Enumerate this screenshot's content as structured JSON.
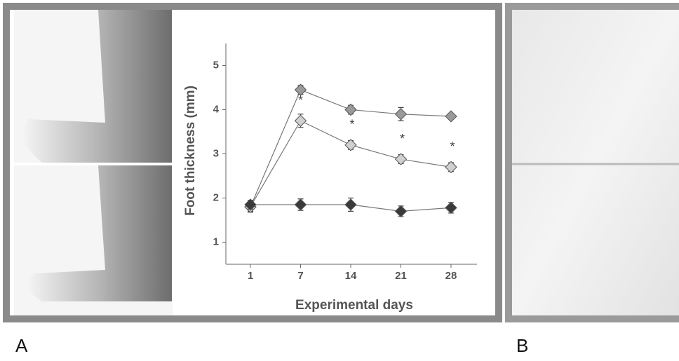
{
  "panel_labels": [
    "A",
    "B"
  ],
  "chart_data": {
    "type": "line",
    "x_label": "Experimental days",
    "y_label": "Foot thickness (mm)",
    "categories": [
      "1",
      "7",
      "14",
      "21",
      "28"
    ],
    "ylim": [
      0.5,
      5.5
    ],
    "yticks": [
      1,
      2,
      3,
      4,
      5
    ],
    "series": [
      {
        "color": "#9a9a9a",
        "values": [
          1.8,
          4.45,
          4.0,
          3.9,
          3.85
        ],
        "errors": [
          0.1,
          0.1,
          0.1,
          0.15,
          0.05
        ]
      },
      {
        "color": "#d0d0d0",
        "values": [
          1.8,
          3.75,
          3.2,
          2.88,
          2.7
        ],
        "errors": [
          0.12,
          0.15,
          0.1,
          0.1,
          0.1
        ],
        "significance": [
          null,
          "*",
          "*",
          "*",
          "*"
        ]
      },
      {
        "color": "#3a3a3a",
        "values": [
          1.85,
          1.85,
          1.85,
          1.7,
          1.78
        ],
        "errors": [
          0.1,
          0.13,
          0.15,
          0.12,
          0.12
        ]
      }
    ]
  }
}
